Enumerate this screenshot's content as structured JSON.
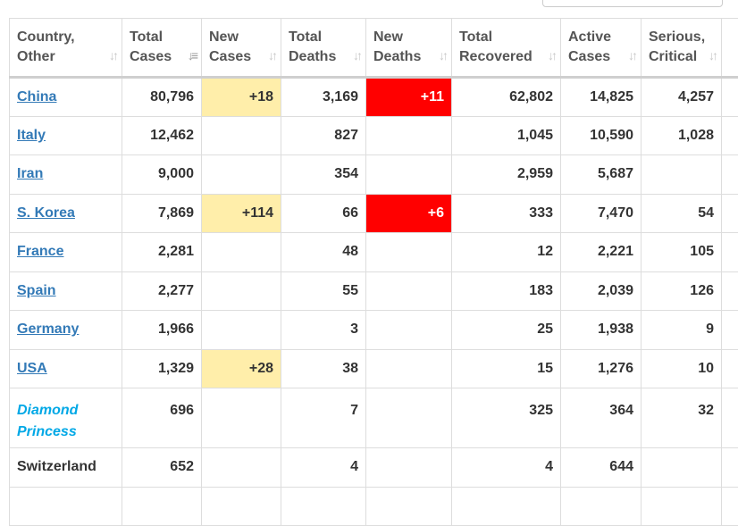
{
  "columns": [
    {
      "line1": "Country,",
      "line2": "Other",
      "sort": "both"
    },
    {
      "line1": "Total",
      "line2": "Cases",
      "sort": "desc"
    },
    {
      "line1": "New",
      "line2": "Cases",
      "sort": "both"
    },
    {
      "line1": "Total",
      "line2": "Deaths",
      "sort": "both"
    },
    {
      "line1": "New",
      "line2": "Deaths",
      "sort": "both"
    },
    {
      "line1": "Total",
      "line2": "Recovered",
      "sort": "both"
    },
    {
      "line1": "Active",
      "line2": "Cases",
      "sort": "both"
    },
    {
      "line1": "Serious,",
      "line2": "Critical",
      "sort": "both"
    },
    {
      "line1": "",
      "line2": "",
      "sort": "none"
    }
  ],
  "rows": [
    {
      "country": "China",
      "country_style": "link",
      "total_cases": "80,796",
      "new_cases": "+18",
      "total_deaths": "3,169",
      "new_deaths": "+11",
      "total_recovered": "62,802",
      "active_cases": "14,825",
      "serious_critical": "4,257"
    },
    {
      "country": "Italy",
      "country_style": "link",
      "total_cases": "12,462",
      "new_cases": "",
      "total_deaths": "827",
      "new_deaths": "",
      "total_recovered": "1,045",
      "active_cases": "10,590",
      "serious_critical": "1,028"
    },
    {
      "country": "Iran",
      "country_style": "link",
      "total_cases": "9,000",
      "new_cases": "",
      "total_deaths": "354",
      "new_deaths": "",
      "total_recovered": "2,959",
      "active_cases": "5,687",
      "serious_critical": ""
    },
    {
      "country": "S. Korea",
      "country_style": "link",
      "total_cases": "7,869",
      "new_cases": "+114",
      "total_deaths": "66",
      "new_deaths": "+6",
      "total_recovered": "333",
      "active_cases": "7,470",
      "serious_critical": "54"
    },
    {
      "country": "France",
      "country_style": "link",
      "total_cases": "2,281",
      "new_cases": "",
      "total_deaths": "48",
      "new_deaths": "",
      "total_recovered": "12",
      "active_cases": "2,221",
      "serious_critical": "105"
    },
    {
      "country": "Spain",
      "country_style": "link",
      "total_cases": "2,277",
      "new_cases": "",
      "total_deaths": "55",
      "new_deaths": "",
      "total_recovered": "183",
      "active_cases": "2,039",
      "serious_critical": "126"
    },
    {
      "country": "Germany",
      "country_style": "link",
      "total_cases": "1,966",
      "new_cases": "",
      "total_deaths": "3",
      "new_deaths": "",
      "total_recovered": "25",
      "active_cases": "1,938",
      "serious_critical": "9"
    },
    {
      "country": "USA",
      "country_style": "link",
      "total_cases": "1,329",
      "new_cases": "+28",
      "total_deaths": "38",
      "new_deaths": "",
      "total_recovered": "15",
      "active_cases": "1,276",
      "serious_critical": "10"
    },
    {
      "country": "Diamond Princess",
      "country_style": "ship",
      "total_cases": "696",
      "new_cases": "",
      "total_deaths": "7",
      "new_deaths": "",
      "total_recovered": "325",
      "active_cases": "364",
      "serious_critical": "32"
    },
    {
      "country": "Switzerland",
      "country_style": "plain",
      "total_cases": "652",
      "new_cases": "",
      "total_deaths": "4",
      "new_deaths": "",
      "total_recovered": "4",
      "active_cases": "644",
      "serious_critical": ""
    },
    {
      "country": "",
      "country_style": "plain",
      "total_cases": "",
      "new_cases": "",
      "total_deaths": "",
      "new_deaths": "",
      "total_recovered": "",
      "active_cases": "",
      "serious_critical": ""
    }
  ],
  "colors": {
    "new_cases_highlight": "#ffeeaa",
    "new_deaths_highlight": "#ff0000",
    "link": "#337ab7",
    "ship": "#00a8e6"
  },
  "icons": {
    "sort_both": "sort-both-icon",
    "sort_desc": "sort-desc-icon"
  }
}
